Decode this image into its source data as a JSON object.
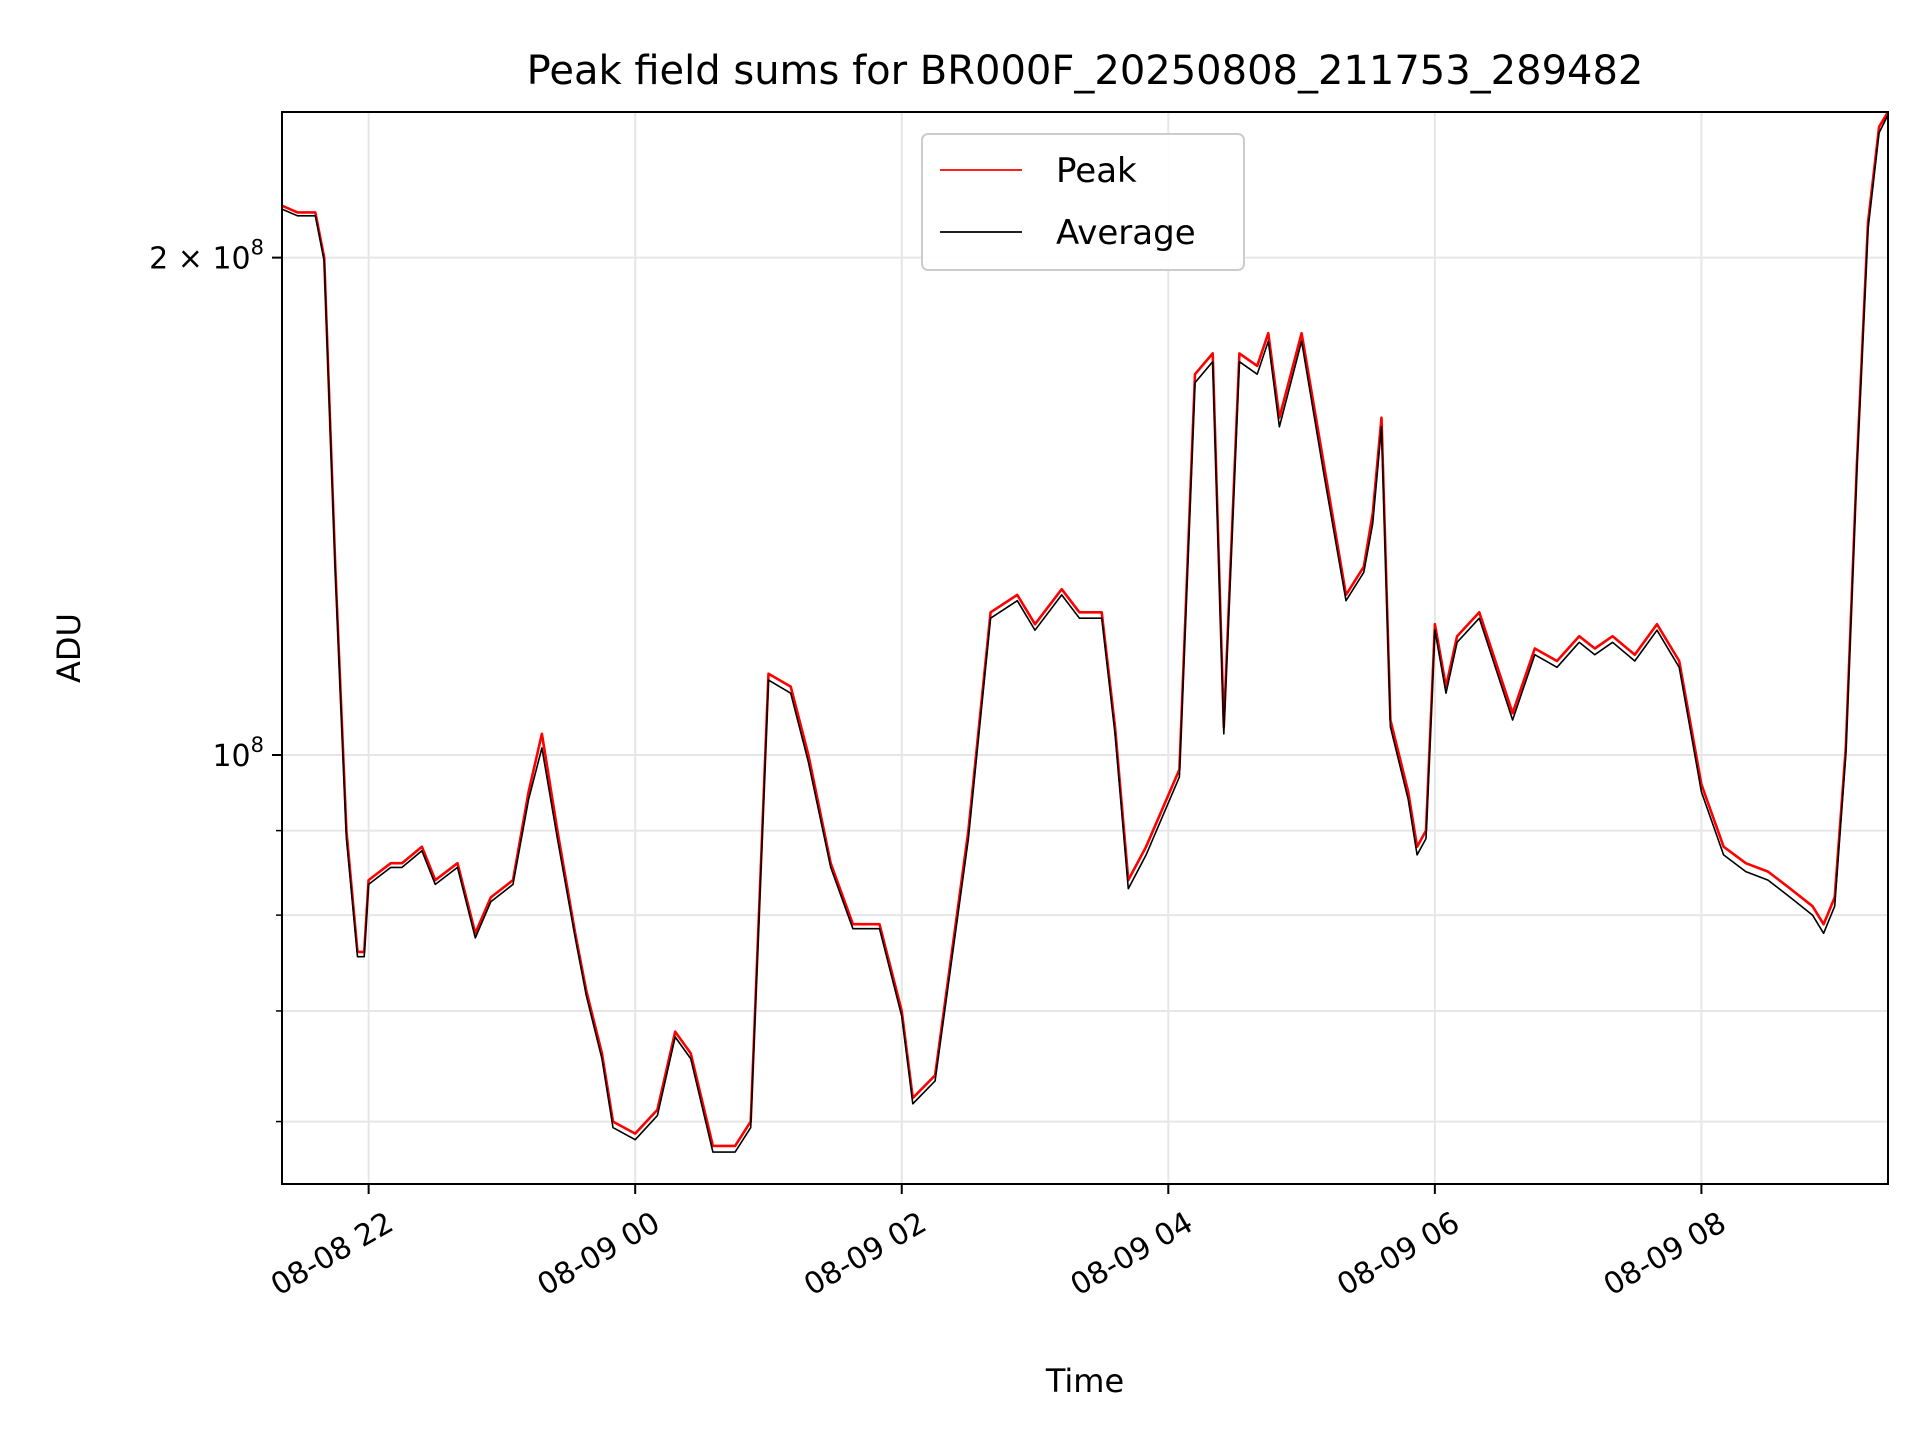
{
  "chart_data": {
    "type": "line",
    "title": "Peak field sums for BR000F_20250808_211753_289482",
    "xlabel": "Time",
    "ylabel": "ADU",
    "y_scale": "log",
    "ylim": [
      55000000,
      245000000
    ],
    "xlim": [
      "2025-08-08 21:21",
      "2025-08-09 09:24"
    ],
    "x_ticks": [
      {
        "t": "2025-08-08 22:00",
        "label": "08-08 22"
      },
      {
        "t": "2025-08-09 00:00",
        "label": "08-09 00"
      },
      {
        "t": "2025-08-09 02:00",
        "label": "08-09 02"
      },
      {
        "t": "2025-08-09 04:00",
        "label": "08-09 04"
      },
      {
        "t": "2025-08-09 06:00",
        "label": "08-09 06"
      },
      {
        "t": "2025-08-09 08:00",
        "label": "08-09 08"
      }
    ],
    "y_ticks_major": [
      {
        "v": 100000000,
        "base": "10",
        "exp": "8",
        "mult": ""
      },
      {
        "v": 200000000,
        "base": "10",
        "exp": "8",
        "mult": "2 × "
      }
    ],
    "y_ticks_minor": [
      60000000,
      70000000,
      80000000,
      90000000
    ],
    "grid": true,
    "legend_position": "top-center",
    "series": [
      {
        "name": "Peak",
        "color": "#ff0000",
        "x": [
          "2025-08-08 21:21",
          "2025-08-08 21:28",
          "2025-08-08 21:36",
          "2025-08-08 21:40",
          "2025-08-08 21:45",
          "2025-08-08 21:50",
          "2025-08-08 21:55",
          "2025-08-08 21:58",
          "2025-08-08 22:00",
          "2025-08-08 22:10",
          "2025-08-08 22:15",
          "2025-08-08 22:24",
          "2025-08-08 22:30",
          "2025-08-08 22:40",
          "2025-08-08 22:48",
          "2025-08-08 22:55",
          "2025-08-08 23:05",
          "2025-08-08 23:12",
          "2025-08-08 23:18",
          "2025-08-08 23:25",
          "2025-08-08 23:33",
          "2025-08-08 23:38",
          "2025-08-08 23:45",
          "2025-08-08 23:50",
          "2025-08-09 00:00",
          "2025-08-09 00:10",
          "2025-08-09 00:18",
          "2025-08-09 00:25",
          "2025-08-09 00:35",
          "2025-08-09 00:45",
          "2025-08-09 00:52",
          "2025-08-09 01:00",
          "2025-08-09 01:10",
          "2025-08-09 01:18",
          "2025-08-09 01:28",
          "2025-08-09 01:38",
          "2025-08-09 01:50",
          "2025-08-09 02:00",
          "2025-08-09 02:05",
          "2025-08-09 02:15",
          "2025-08-09 02:30",
          "2025-08-09 02:40",
          "2025-08-09 02:52",
          "2025-08-09 03:00",
          "2025-08-09 03:12",
          "2025-08-09 03:20",
          "2025-08-09 03:30",
          "2025-08-09 03:36",
          "2025-08-09 03:42",
          "2025-08-09 03:50",
          "2025-08-09 04:05",
          "2025-08-09 04:12",
          "2025-08-09 04:20",
          "2025-08-09 04:25",
          "2025-08-09 04:32",
          "2025-08-09 04:40",
          "2025-08-09 04:45",
          "2025-08-09 04:50",
          "2025-08-09 05:00",
          "2025-08-09 05:10",
          "2025-08-09 05:20",
          "2025-08-09 05:28",
          "2025-08-09 05:32",
          "2025-08-09 05:36",
          "2025-08-09 05:40",
          "2025-08-09 05:48",
          "2025-08-09 05:52",
          "2025-08-09 05:56",
          "2025-08-09 06:00",
          "2025-08-09 06:05",
          "2025-08-09 06:10",
          "2025-08-09 06:20",
          "2025-08-09 06:35",
          "2025-08-09 06:45",
          "2025-08-09 06:55",
          "2025-08-09 07:05",
          "2025-08-09 07:12",
          "2025-08-09 07:20",
          "2025-08-09 07:30",
          "2025-08-09 07:40",
          "2025-08-09 07:50",
          "2025-08-09 08:00",
          "2025-08-09 08:10",
          "2025-08-09 08:20",
          "2025-08-09 08:30",
          "2025-08-09 08:40",
          "2025-08-09 08:50",
          "2025-08-09 08:55",
          "2025-08-09 09:00",
          "2025-08-09 09:05",
          "2025-08-09 09:10",
          "2025-08-09 09:15",
          "2025-08-09 09:20",
          "2025-08-09 09:24"
        ],
        "values": [
          215000000,
          213000000,
          213000000,
          200000000,
          130000000,
          90000000,
          76000000,
          76000000,
          84000000,
          86000000,
          86000000,
          88000000,
          84000000,
          86000000,
          78000000,
          82000000,
          84000000,
          95000000,
          103000000,
          90000000,
          78000000,
          72000000,
          66000000,
          60000000,
          59000000,
          61000000,
          68000000,
          66000000,
          58000000,
          58000000,
          60000000,
          112000000,
          110000000,
          100000000,
          86000000,
          79000000,
          79000000,
          70000000,
          62000000,
          64000000,
          90000000,
          122000000,
          125000000,
          120000000,
          126000000,
          122000000,
          122000000,
          104000000,
          84000000,
          88000000,
          98000000,
          170000000,
          175000000,
          104000000,
          175000000,
          172000000,
          180000000,
          160000000,
          180000000,
          150000000,
          125000000,
          130000000,
          140000000,
          160000000,
          105000000,
          95000000,
          88000000,
          90000000,
          120000000,
          110000000,
          118000000,
          122000000,
          106000000,
          116000000,
          114000000,
          118000000,
          116000000,
          118000000,
          115000000,
          120000000,
          114000000,
          96000000,
          88000000,
          86000000,
          85000000,
          83000000,
          81000000,
          79000000,
          82000000,
          101000000,
          150000000,
          210000000,
          240000000,
          245000000
        ]
      },
      {
        "name": "Average",
        "color": "#000000",
        "x": [
          "2025-08-08 21:21",
          "2025-08-08 21:28",
          "2025-08-08 21:36",
          "2025-08-08 21:40",
          "2025-08-08 21:45",
          "2025-08-08 21:50",
          "2025-08-08 21:55",
          "2025-08-08 21:58",
          "2025-08-08 22:00",
          "2025-08-08 22:10",
          "2025-08-08 22:15",
          "2025-08-08 22:24",
          "2025-08-08 22:30",
          "2025-08-08 22:40",
          "2025-08-08 22:48",
          "2025-08-08 22:55",
          "2025-08-08 23:05",
          "2025-08-08 23:12",
          "2025-08-08 23:18",
          "2025-08-08 23:25",
          "2025-08-08 23:33",
          "2025-08-08 23:38",
          "2025-08-08 23:45",
          "2025-08-08 23:50",
          "2025-08-09 00:00",
          "2025-08-09 00:10",
          "2025-08-09 00:18",
          "2025-08-09 00:25",
          "2025-08-09 00:35",
          "2025-08-09 00:45",
          "2025-08-09 00:52",
          "2025-08-09 01:00",
          "2025-08-09 01:10",
          "2025-08-09 01:18",
          "2025-08-09 01:28",
          "2025-08-09 01:38",
          "2025-08-09 01:50",
          "2025-08-09 02:00",
          "2025-08-09 02:05",
          "2025-08-09 02:15",
          "2025-08-09 02:30",
          "2025-08-09 02:40",
          "2025-08-09 02:52",
          "2025-08-09 03:00",
          "2025-08-09 03:12",
          "2025-08-09 03:20",
          "2025-08-09 03:30",
          "2025-08-09 03:36",
          "2025-08-09 03:42",
          "2025-08-09 03:50",
          "2025-08-09 04:05",
          "2025-08-09 04:12",
          "2025-08-09 04:20",
          "2025-08-09 04:25",
          "2025-08-09 04:32",
          "2025-08-09 04:40",
          "2025-08-09 04:45",
          "2025-08-09 04:50",
          "2025-08-09 05:00",
          "2025-08-09 05:10",
          "2025-08-09 05:20",
          "2025-08-09 05:28",
          "2025-08-09 05:32",
          "2025-08-09 05:36",
          "2025-08-09 05:40",
          "2025-08-09 05:48",
          "2025-08-09 05:52",
          "2025-08-09 05:56",
          "2025-08-09 06:00",
          "2025-08-09 06:05",
          "2025-08-09 06:10",
          "2025-08-09 06:20",
          "2025-08-09 06:35",
          "2025-08-09 06:45",
          "2025-08-09 06:55",
          "2025-08-09 07:05",
          "2025-08-09 07:12",
          "2025-08-09 07:20",
          "2025-08-09 07:30",
          "2025-08-09 07:40",
          "2025-08-09 07:50",
          "2025-08-09 08:00",
          "2025-08-09 08:10",
          "2025-08-09 08:20",
          "2025-08-09 08:30",
          "2025-08-09 08:40",
          "2025-08-09 08:50",
          "2025-08-09 08:55",
          "2025-08-09 09:00",
          "2025-08-09 09:05",
          "2025-08-09 09:10",
          "2025-08-09 09:15",
          "2025-08-09 09:20",
          "2025-08-09 09:24"
        ],
        "values": [
          214000000,
          212000000,
          212000000,
          199000000,
          129000000,
          89000000,
          75500000,
          75500000,
          83500000,
          85500000,
          85500000,
          87500000,
          83500000,
          85500000,
          77500000,
          81500000,
          83500000,
          94000000,
          101000000,
          89000000,
          77500000,
          71500000,
          65500000,
          59500000,
          58500000,
          60500000,
          67500000,
          65500000,
          57500000,
          57500000,
          59500000,
          111000000,
          109000000,
          99000000,
          85500000,
          78500000,
          78500000,
          69500000,
          61500000,
          63500000,
          89000000,
          121000000,
          124000000,
          119000000,
          125000000,
          121000000,
          121000000,
          103000000,
          83000000,
          87000000,
          97000000,
          168000000,
          173000000,
          103000000,
          173000000,
          170000000,
          178000000,
          158000000,
          178000000,
          148000000,
          124000000,
          129000000,
          138000000,
          158000000,
          104000000,
          94000000,
          87000000,
          89000000,
          119000000,
          109000000,
          117000000,
          121000000,
          105000000,
          115000000,
          113000000,
          117000000,
          115000000,
          117000000,
          114000000,
          119000000,
          113000000,
          95000000,
          87000000,
          85000000,
          84000000,
          82000000,
          80000000,
          78000000,
          81000000,
          100000000,
          149000000,
          208000000,
          238000000,
          244000000
        ]
      }
    ]
  }
}
